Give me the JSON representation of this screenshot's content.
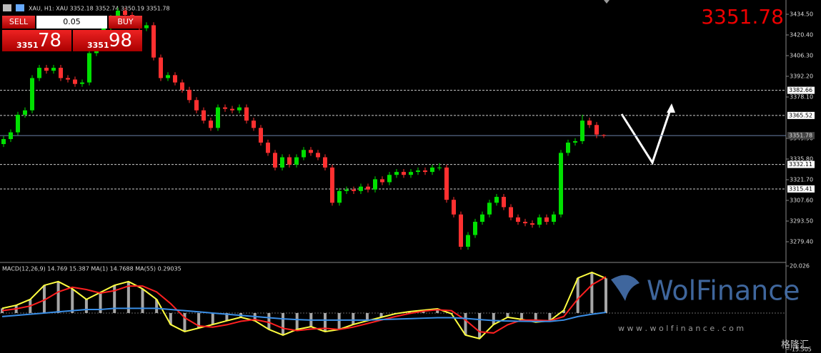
{
  "header": {
    "symbol_line": "XAU, H1:  XAU  3352.18 3352.74 3350.19 3351.78",
    "last_price": "3351.78"
  },
  "trade_panel": {
    "sell": "SELL",
    "buy": "BUY",
    "volume": "0.05",
    "bid_prefix": "3351",
    "bid_pips": "78",
    "ask_prefix": "3351",
    "ask_pips": "98"
  },
  "watermark": {
    "brand": "WolFinance",
    "url": "w w w . w o l f i n a n c e . c o m",
    "source": "格隆汇"
  },
  "chart_data": [
    {
      "type": "candlestick",
      "up_color": "#00e000",
      "down_color": "#ff3030",
      "ylim": [
        3265.79,
        3444.22
      ],
      "yticks": [
        {
          "value": 3434.5,
          "label": "3434.50"
        },
        {
          "value": 3420.4,
          "label": "3420.40"
        },
        {
          "value": 3406.3,
          "label": "3406.30"
        },
        {
          "value": 3392.2,
          "label": "3392.20"
        },
        {
          "value": 3378.1,
          "label": "3378.10"
        },
        {
          "value": 3349.9,
          "label": "3349.90"
        },
        {
          "value": 3335.8,
          "label": "3335.80"
        },
        {
          "value": 3321.7,
          "label": "3321.70"
        },
        {
          "value": 3307.6,
          "label": "3307.60"
        },
        {
          "value": 3293.5,
          "label": "3293.50"
        },
        {
          "value": 3279.4,
          "label": "3279.40"
        }
      ],
      "levels": [
        3382.66,
        3365.52,
        3351.78,
        3332.11,
        3315.41
      ],
      "ohlc": [
        [
          3346,
          3351.4,
          3344,
          3349.4
        ],
        [
          3349.4,
          3356,
          3347.4,
          3354
        ],
        [
          3354,
          3368,
          3352,
          3366
        ],
        [
          3366,
          3371,
          3364,
          3369
        ],
        [
          3369,
          3393,
          3367,
          3391
        ],
        [
          3391,
          3400,
          3389,
          3398
        ],
        [
          3398,
          3400,
          3394,
          3396
        ],
        [
          3396,
          3400,
          3394,
          3398
        ],
        [
          3398,
          3400,
          3389,
          3391
        ],
        [
          3391,
          3393,
          3388,
          3390
        ],
        [
          3390,
          3392,
          3385,
          3387
        ],
        [
          3387,
          3390,
          3385,
          3388
        ],
        [
          3388,
          3410,
          3386,
          3408
        ],
        [
          3408,
          3419,
          3406,
          3417
        ],
        [
          3417,
          3427,
          3415,
          3425
        ],
        [
          3425,
          3434,
          3423,
          3432
        ],
        [
          3432,
          3439,
          3430,
          3437
        ],
        [
          3437,
          3439,
          3432,
          3434
        ],
        [
          3434,
          3436,
          3425,
          3427
        ],
        [
          3427,
          3429,
          3423,
          3425
        ],
        [
          3425,
          3429,
          3423,
          3427
        ],
        [
          3427,
          3429,
          3403,
          3405
        ],
        [
          3405,
          3407,
          3389,
          3391
        ],
        [
          3391,
          3395,
          3389,
          3393
        ],
        [
          3393,
          3395,
          3386,
          3388
        ],
        [
          3388,
          3390,
          3381,
          3383
        ],
        [
          3383,
          3385,
          3374,
          3376
        ],
        [
          3376,
          3378,
          3367,
          3369
        ],
        [
          3369,
          3371,
          3360,
          3362
        ],
        [
          3362,
          3364,
          3355,
          3357
        ],
        [
          3357,
          3373,
          3355,
          3371
        ],
        [
          3371,
          3373,
          3368,
          3370
        ],
        [
          3370,
          3372,
          3367,
          3369
        ],
        [
          3369,
          3373,
          3367,
          3371
        ],
        [
          3371,
          3373,
          3360,
          3362
        ],
        [
          3362,
          3364,
          3355,
          3357
        ],
        [
          3357,
          3359,
          3345,
          3347
        ],
        [
          3347,
          3349,
          3338,
          3340
        ],
        [
          3340,
          3342,
          3328,
          3330
        ],
        [
          3330,
          3339,
          3328,
          3337
        ],
        [
          3337,
          3339,
          3330,
          3332
        ],
        [
          3332,
          3339,
          3330,
          3337
        ],
        [
          3337,
          3344,
          3335,
          3342
        ],
        [
          3342,
          3344,
          3338,
          3340
        ],
        [
          3340,
          3342,
          3335,
          3337
        ],
        [
          3337,
          3339,
          3328,
          3330
        ],
        [
          3330,
          3332,
          3304,
          3306
        ],
        [
          3306,
          3316,
          3304,
          3314
        ],
        [
          3314,
          3317,
          3312,
          3315
        ],
        [
          3315,
          3317,
          3312,
          3314
        ],
        [
          3314,
          3319,
          3312,
          3317
        ],
        [
          3317,
          3319,
          3313,
          3315
        ],
        [
          3315,
          3324,
          3313,
          3322
        ],
        [
          3322,
          3324,
          3318,
          3320
        ],
        [
          3320,
          3327,
          3318,
          3325
        ],
        [
          3325,
          3329,
          3323,
          3327
        ],
        [
          3327,
          3329,
          3323,
          3325
        ],
        [
          3325,
          3329,
          3323,
          3327
        ],
        [
          3327,
          3330,
          3325,
          3328
        ],
        [
          3328,
          3330,
          3325,
          3327
        ],
        [
          3327,
          3332,
          3325,
          3330
        ],
        [
          3330,
          3333,
          3328,
          3330
        ],
        [
          3330,
          3332,
          3306,
          3308
        ],
        [
          3308,
          3310,
          3296,
          3298
        ],
        [
          3298,
          3300,
          3274,
          3276
        ],
        [
          3276,
          3286,
          3274,
          3284
        ],
        [
          3284,
          3295,
          3282,
          3293
        ],
        [
          3293,
          3300,
          3291,
          3298
        ],
        [
          3298,
          3308,
          3296,
          3306
        ],
        [
          3306,
          3312,
          3304,
          3310
        ],
        [
          3310,
          3312,
          3301,
          3303
        ],
        [
          3303,
          3305,
          3294,
          3296
        ],
        [
          3296,
          3298,
          3291,
          3293
        ],
        [
          3293,
          3295,
          3290,
          3292
        ],
        [
          3292,
          3294,
          3289,
          3291
        ],
        [
          3291,
          3298,
          3289,
          3296
        ],
        [
          3296,
          3298,
          3291,
          3293
        ],
        [
          3293,
          3300,
          3291,
          3298
        ],
        [
          3298,
          3342,
          3296,
          3340
        ],
        [
          3340,
          3349,
          3338,
          3347
        ],
        [
          3347,
          3350,
          3345,
          3348
        ],
        [
          3348,
          3366,
          3346,
          3362
        ],
        [
          3362,
          3364,
          3357,
          3359
        ],
        [
          3359,
          3361,
          3350,
          3352.5
        ],
        [
          3352.18,
          3352.74,
          3350.19,
          3351.78
        ]
      ]
    },
    {
      "type": "macd",
      "label": "MACD(12,26,9) 14.769 15.387 MA(1) 14.7688 MA(55) 0.29035",
      "ylim": [
        -15.505,
        20.026
      ],
      "yticks": [
        20.026,
        -15.505
      ],
      "series": [
        {
          "color": "#ffff40",
          "values": [
            2,
            3.3,
            5.8,
            11.8,
            13.4,
            10.3,
            5.8,
            8.8,
            11.8,
            13.4,
            10.3,
            5.8,
            -4.9,
            -7.9,
            -6.4,
            -4.9,
            -3.3,
            -1.8,
            -3.3,
            -7,
            -9.4,
            -7,
            -5.8,
            -7.9,
            -7,
            -4.9,
            -3.3,
            -1.8,
            -0.3,
            0.6,
            1.2,
            1.8,
            -0.3,
            -9.4,
            -10.9,
            -4.9,
            -1.8,
            -2.7,
            -3.9,
            -3.3,
            1.2,
            14.9,
            17.3,
            14.769
          ]
        },
        {
          "color": "#ff2020",
          "values": [
            1,
            1.8,
            3,
            5.5,
            9,
            11,
            10,
            8.5,
            9.5,
            11.5,
            11.5,
            9,
            4,
            -2,
            -5.5,
            -6,
            -5,
            -3.5,
            -2.8,
            -4,
            -6.5,
            -7.5,
            -6.8,
            -6.5,
            -7,
            -6,
            -4.5,
            -3,
            -1.5,
            -0.2,
            0.8,
            1.4,
            1,
            -3,
            -8,
            -8.5,
            -5,
            -3,
            -3,
            -3.3,
            -1.5,
            6,
            12,
            15.387
          ]
        },
        {
          "color": "#3a8ee6",
          "values": [
            -1.5,
            -1,
            -0.5,
            0,
            0.5,
            1,
            1.5,
            1.5,
            2,
            2,
            2,
            2,
            1.5,
            1,
            0.5,
            0,
            -0.5,
            -1,
            -1.5,
            -2,
            -2.5,
            -2.8,
            -3,
            -3,
            -3,
            -3,
            -3,
            -2.8,
            -2.6,
            -2.4,
            -2.2,
            -2,
            -2,
            -2.3,
            -2.8,
            -3.2,
            -3.4,
            -3.5,
            -3.6,
            -3.6,
            -3,
            -1.5,
            -0.5,
            0.29035
          ]
        }
      ]
    }
  ]
}
